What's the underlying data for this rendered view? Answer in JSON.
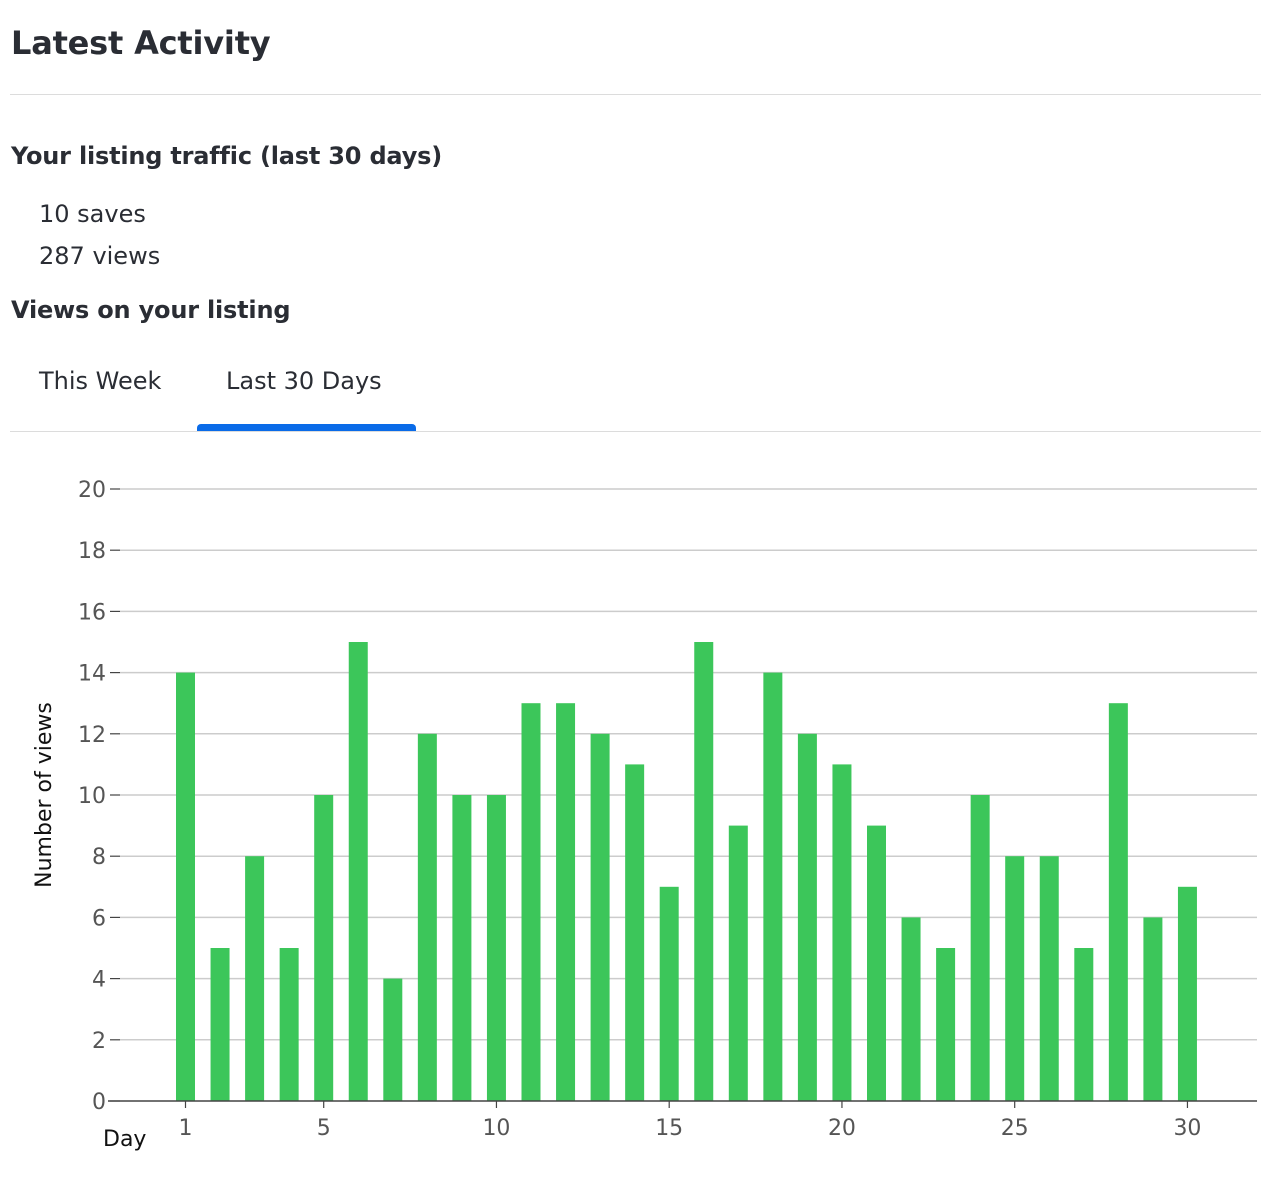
{
  "header": {
    "title": "Latest Activity"
  },
  "traffic": {
    "heading": "Your listing traffic (last 30 days)",
    "saves": "10 saves",
    "views": "287 views"
  },
  "views_section": {
    "heading": "Views on your listing",
    "tabs": [
      {
        "label": "This Week",
        "active": false
      },
      {
        "label": "Last 30 Days",
        "active": true
      }
    ]
  },
  "colors": {
    "bar": "#3cc65a",
    "tab_active": "#0a6be8",
    "grid": "#cccccc"
  },
  "chart_data": {
    "type": "bar",
    "xlabel": "Day",
    "ylabel": "Number of views",
    "ylim": [
      0,
      20
    ],
    "yticks": [
      0,
      2,
      4,
      6,
      8,
      10,
      12,
      14,
      16,
      18,
      20
    ],
    "xticks": [
      1,
      5,
      10,
      15,
      20,
      25,
      30
    ],
    "grid": true,
    "categories": [
      1,
      2,
      3,
      4,
      5,
      6,
      7,
      8,
      9,
      10,
      11,
      12,
      13,
      14,
      15,
      16,
      17,
      18,
      19,
      20,
      21,
      22,
      23,
      24,
      25,
      26,
      27,
      28,
      29,
      30
    ],
    "values": [
      14,
      5,
      8,
      5,
      10,
      15,
      4,
      12,
      10,
      10,
      13,
      13,
      12,
      11,
      7,
      15,
      9,
      14,
      12,
      11,
      9,
      6,
      5,
      10,
      8,
      8,
      5,
      13,
      6,
      7
    ]
  }
}
